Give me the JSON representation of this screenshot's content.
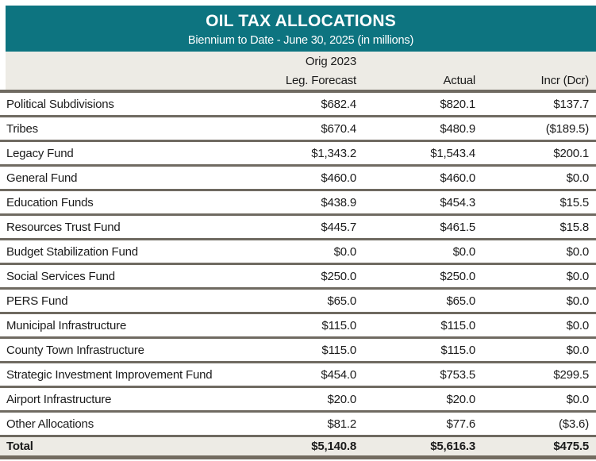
{
  "header": {
    "title": "OIL TAX ALLOCATIONS",
    "subtitle": "Biennium to Date - June 30, 2025 (in millions)"
  },
  "columns": {
    "group_label": "Orig 2023",
    "forecast_label": "Leg. Forecast",
    "actual_label": "Actual",
    "incr_label": "Incr (Dcr)"
  },
  "rows": [
    {
      "label": "Political Subdivisions",
      "forecast": "$682.4",
      "actual": "$820.1",
      "incr": "$137.7"
    },
    {
      "label": "Tribes",
      "forecast": "$670.4",
      "actual": "$480.9",
      "incr": "($189.5)"
    },
    {
      "label": "Legacy Fund",
      "forecast": "$1,343.2",
      "actual": "$1,543.4",
      "incr": "$200.1"
    },
    {
      "label": "General Fund",
      "forecast": "$460.0",
      "actual": "$460.0",
      "incr": "$0.0"
    },
    {
      "label": "Education Funds",
      "forecast": "$438.9",
      "actual": "$454.3",
      "incr": "$15.5"
    },
    {
      "label": "Resources Trust Fund",
      "forecast": "$445.7",
      "actual": "$461.5",
      "incr": "$15.8"
    },
    {
      "label": "Budget Stabilization Fund",
      "forecast": "$0.0",
      "actual": "$0.0",
      "incr": "$0.0"
    },
    {
      "label": "Social Services Fund",
      "forecast": "$250.0",
      "actual": "$250.0",
      "incr": "$0.0"
    },
    {
      "label": "PERS Fund",
      "forecast": "$65.0",
      "actual": "$65.0",
      "incr": "$0.0"
    },
    {
      "label": "Municipal Infrastructure",
      "forecast": "$115.0",
      "actual": "$115.0",
      "incr": "$0.0"
    },
    {
      "label": "County Town Infrastructure",
      "forecast": "$115.0",
      "actual": "$115.0",
      "incr": "$0.0"
    },
    {
      "label": "Strategic Investment Improvement Fund",
      "forecast": "$454.0",
      "actual": "$753.5",
      "incr": "$299.5"
    },
    {
      "label": "Airport Infrastructure",
      "forecast": "$20.0",
      "actual": "$20.0",
      "incr": "$0.0"
    },
    {
      "label": "Other Allocations",
      "forecast": "$81.2",
      "actual": "$77.6",
      "incr": "($3.6)"
    }
  ],
  "total": {
    "label": "Total",
    "forecast": "$5,140.8",
    "actual": "$5,616.3",
    "incr": "$475.5"
  },
  "colors": {
    "teal_header": "#0d7480",
    "band_gray": "#edebe5",
    "divider_gray": "#6f6a61",
    "bottom_bar": "#736c60"
  }
}
